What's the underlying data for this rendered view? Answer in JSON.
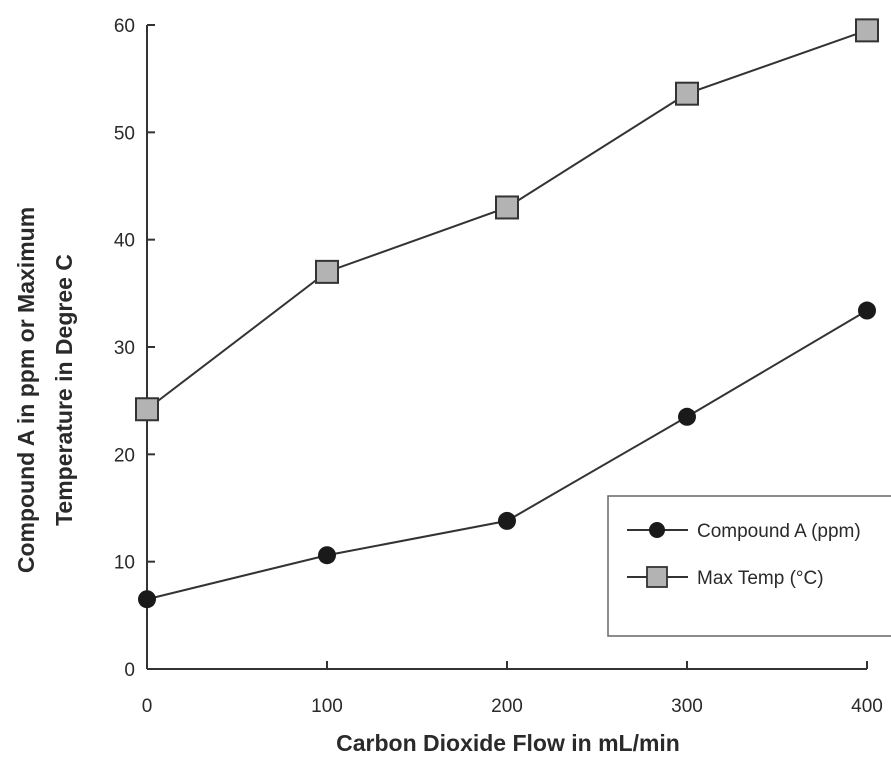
{
  "chart_data": {
    "type": "line",
    "x": [
      0,
      100,
      200,
      300,
      400
    ],
    "series": [
      {
        "name": "Compound A (ppm)",
        "values": [
          6.5,
          10.6,
          13.8,
          23.5,
          33.4
        ],
        "marker": "circle",
        "color": "#1a1a1a"
      },
      {
        "name": "Max Temp (°C)",
        "values": [
          24.2,
          37.0,
          43.0,
          53.6,
          59.5
        ],
        "marker": "square",
        "color": "#b3b3b3"
      }
    ],
    "xlabel": "Carbon Dioxide Flow in mL/min",
    "ylabel_lines": [
      "Compound A in ppm or Maximum",
      "Temperature in Degree C"
    ],
    "xlim": [
      0,
      400
    ],
    "ylim": [
      0,
      60
    ],
    "xticks": [
      "0",
      "100",
      "200",
      "300",
      "400"
    ],
    "yticks": [
      "0",
      "10",
      "20",
      "30",
      "40",
      "50",
      "60"
    ],
    "grid": false,
    "legend_position": "right"
  }
}
